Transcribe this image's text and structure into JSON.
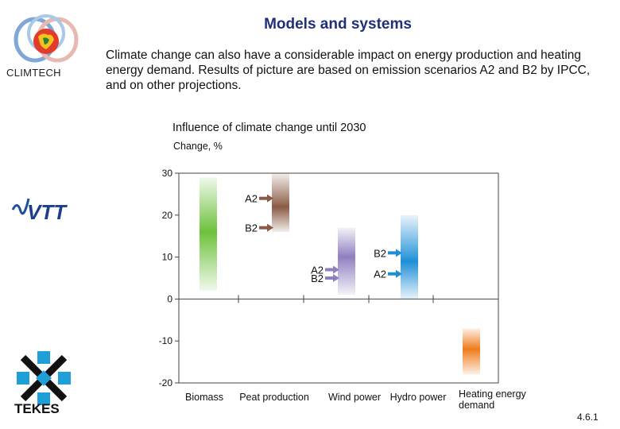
{
  "slide": {
    "title": "Models and systems",
    "intro": "Climate change can also have a considerable impact on energy production and heating energy demand. Results of picture are based on emission scenarios A2 and B2 by IPCC, and on other projections.",
    "slide_number": "4.6.1"
  },
  "logos": {
    "climtech": {
      "label": "CLIMTECH",
      "icon": "climtech-globe-logo"
    },
    "vtt": {
      "label": "VTT",
      "icon": "vtt-logo"
    },
    "tekes": {
      "label": "TEKES",
      "icon": "tekes-snowflake-logo"
    }
  },
  "colors": {
    "title": "#1f2f7a",
    "biomass": "#6cc13a",
    "peat": "#8a5a44",
    "wind": "#8f7fc0",
    "hydro": "#1e8fd6",
    "heating": "#ef7a1a"
  },
  "chart_data": {
    "type": "bar",
    "chart_title": "Influence of climate change until 2030",
    "ylabel": "Change, %",
    "ylim": [
      -20,
      30
    ],
    "yticks": [
      30,
      20,
      10,
      0,
      -10,
      -20
    ],
    "categories": [
      "Biomass",
      "Peat production",
      "Wind power",
      "Hydro power",
      "Heating energy demand"
    ],
    "ranges": [
      {
        "category": "Biomass",
        "low": 2,
        "high": 29,
        "peak": 16,
        "color": "#6cc13a"
      },
      {
        "category": "Peat production",
        "low": 16,
        "high": 30,
        "peak": 22,
        "color": "#8a5a44"
      },
      {
        "category": "Wind power",
        "low": 1,
        "high": 17,
        "peak": 10,
        "color": "#8f7fc0"
      },
      {
        "category": "Hydro power",
        "low": 0,
        "high": 20,
        "peak": 9,
        "color": "#1e8fd6"
      },
      {
        "category": "Heating energy demand",
        "low": -18,
        "high": -7,
        "peak": -12,
        "color": "#ef7a1a"
      }
    ],
    "annotations": [
      {
        "text": "A2",
        "category": "Peat production",
        "value": 24,
        "arrow_color": "#8a5a44"
      },
      {
        "text": "B2",
        "category": "Peat production",
        "value": 17,
        "arrow_color": "#8a5a44"
      },
      {
        "text": "A2",
        "category": "Wind power",
        "value": 7,
        "arrow_color": "#8f7fc0"
      },
      {
        "text": "B2",
        "category": "Wind power",
        "value": 5,
        "arrow_color": "#8f7fc0"
      },
      {
        "text": "B2",
        "category": "Hydro power",
        "value": 11,
        "arrow_color": "#1e8fd6"
      },
      {
        "text": "A2",
        "category": "Hydro power",
        "value": 6,
        "arrow_color": "#1e8fd6"
      }
    ]
  }
}
